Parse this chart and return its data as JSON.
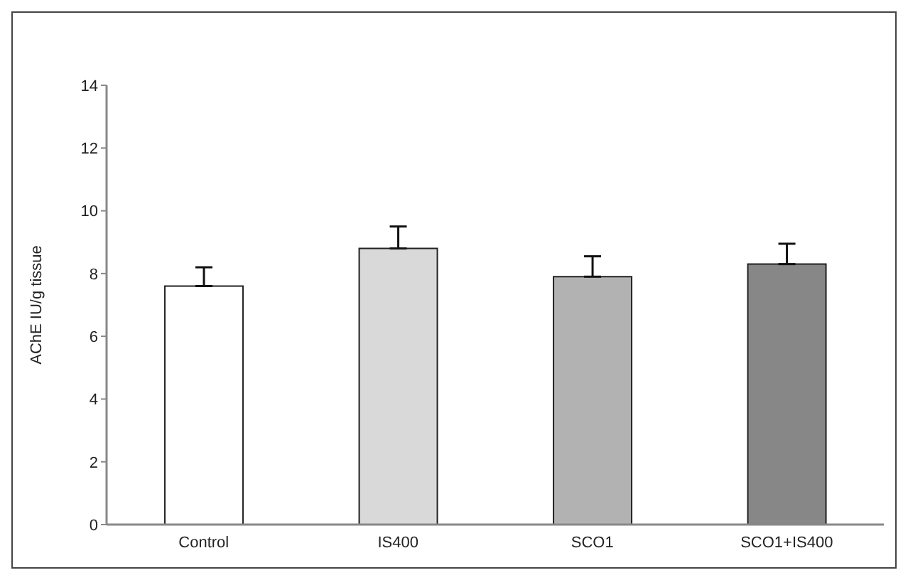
{
  "chart_data": {
    "type": "bar",
    "ylabel": "AChE IU/g tissue",
    "categories": [
      "Control",
      "IS400",
      "SCO1",
      "SCO1+IS400"
    ],
    "values": [
      7.6,
      8.8,
      7.9,
      8.3
    ],
    "colors": [
      "#ffffff",
      "#d9d9d9",
      "#b2b2b2",
      "#878787"
    ],
    "errors": [
      [
        7.6,
        8.2
      ],
      [
        8.8,
        9.5
      ],
      [
        7.9,
        8.55
      ],
      [
        8.3,
        8.95
      ]
    ],
    "ylim": [
      0,
      14
    ],
    "yticks": [
      0,
      2,
      4,
      6,
      8,
      10,
      12,
      14
    ],
    "grid": false,
    "legend": false
  }
}
